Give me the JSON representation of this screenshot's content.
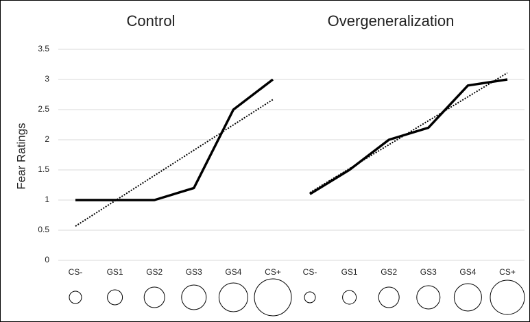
{
  "chart_data": {
    "type": "line",
    "ylabel": "Fear Ratings",
    "ylim": [
      0,
      3.5
    ],
    "yticks": [
      0,
      0.5,
      1,
      1.5,
      2,
      2.5,
      3,
      3.5
    ],
    "grid": true,
    "trendline": "linear",
    "color": "#000000",
    "panels": [
      {
        "title": "Control",
        "categories": [
          "CS-",
          "GS1",
          "GS2",
          "GS3",
          "GS4",
          "CS+"
        ],
        "values": [
          1,
          1,
          1,
          1.2,
          2.5,
          3
        ]
      },
      {
        "title": "Overgeneralization",
        "categories": [
          "CS-",
          "GS1",
          "GS2",
          "GS3",
          "GS4",
          "CS+"
        ],
        "values": [
          1.1,
          1.5,
          2,
          2.2,
          2.9,
          3
        ]
      }
    ]
  }
}
